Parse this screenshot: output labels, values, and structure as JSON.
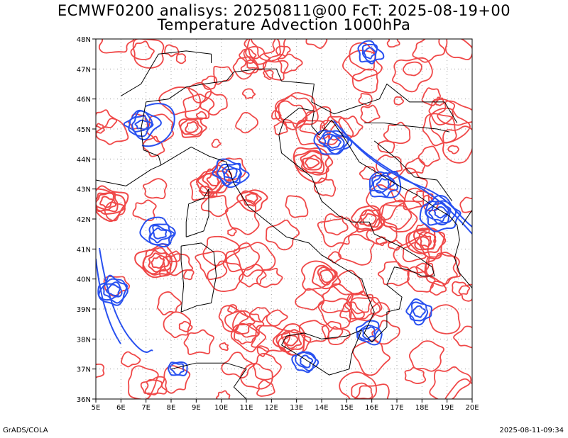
{
  "title_line1": "ECMWF0200 analisys: 20250811@00 FcT: 2025-08-19+00",
  "title_line2": "Temperature Advection 1000hPa",
  "footer_left": "GrADS/COLA",
  "footer_right": "2025-08-11-09:34",
  "map": {
    "lon_range": [
      5,
      20
    ],
    "lat_range": [
      36,
      48
    ],
    "lon_ticks": [
      "5E",
      "6E",
      "7E",
      "8E",
      "9E",
      "10E",
      "11E",
      "12E",
      "13E",
      "14E",
      "15E",
      "16E",
      "17E",
      "18E",
      "19E",
      "20E"
    ],
    "lat_ticks": [
      "36N",
      "37N",
      "38N",
      "39N",
      "40N",
      "41N",
      "42N",
      "43N",
      "44N",
      "45N",
      "46N",
      "47N",
      "48N"
    ],
    "grid": "dotted",
    "colors": {
      "positive_contours": "#f04848",
      "negative_contours": "#2850f0",
      "coastline": "#000000",
      "grid": "#a0a0a0"
    }
  }
}
